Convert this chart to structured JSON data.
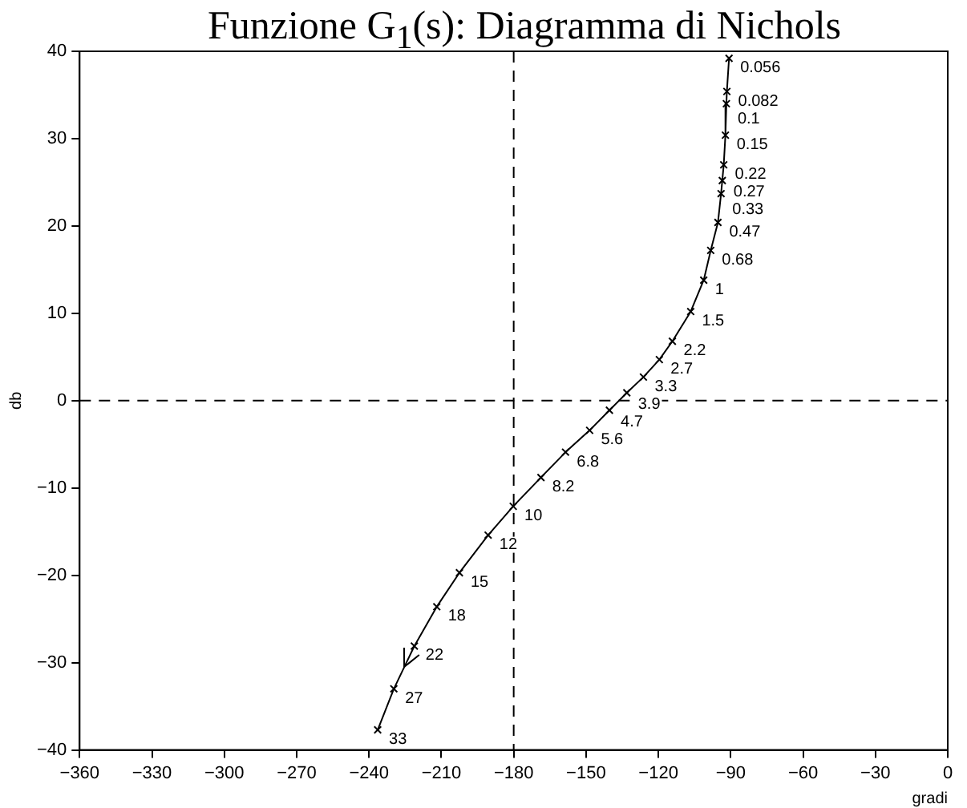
{
  "chart_data": {
    "type": "line",
    "title": "Funzione G$_{1}$(s): Diagramma di Nichols",
    "xlabel": "gradi",
    "ylabel": "db",
    "xlim": [
      -360,
      0
    ],
    "xticks": [
      -360,
      -330,
      -300,
      -270,
      -240,
      -210,
      -180,
      -150,
      -120,
      -90,
      -60,
      -30,
      0
    ],
    "ylim": [
      -40,
      40
    ],
    "yticks": [
      -40,
      -30,
      -20,
      -10,
      0,
      10,
      20,
      30,
      40
    ],
    "grid": false,
    "legend": false,
    "marker": "cross",
    "line_style": "solid",
    "series": [
      {
        "color": "#000000",
        "x": [
          -90.7,
          -91.6,
          -91.8,
          -92.2,
          -92.9,
          -93.5,
          -94.0,
          -95.3,
          -98.3,
          -101.2,
          -106.6,
          -114.2,
          -119.6,
          -126.2,
          -133.1,
          -140.3,
          -148.5,
          -158.5,
          -168.7,
          -180.2,
          -190.6,
          -202.5,
          -211.9,
          -221.2,
          -229.7,
          -236.4
        ],
        "values": [
          39.2,
          35.4,
          34.0,
          30.4,
          27.0,
          25.2,
          23.7,
          20.4,
          17.2,
          13.8,
          10.2,
          6.8,
          4.7,
          2.7,
          0.9,
          -1.1,
          -3.4,
          -5.9,
          -8.8,
          -12.1,
          -15.4,
          -19.7,
          -23.6,
          -28.1,
          -33.0,
          -37.7
        ]
      }
    ],
    "ref_lines": [
      {
        "axis": "x",
        "value": -180,
        "color": "#000000",
        "line_style": "dashed"
      },
      {
        "axis": "y",
        "value": 0,
        "color": "#000000",
        "line_style": "dashed"
      }
    ],
    "annotations": [
      {
        "text": "0.056",
        "x": -90.7,
        "y": 39.2
      },
      {
        "text": "0.082",
        "x": -91.6,
        "y": 35.4
      },
      {
        "text": "0.1",
        "x": -91.8,
        "y": 34.0
      },
      {
        "text": "0.15",
        "x": -92.2,
        "y": 30.4
      },
      {
        "text": "0.22",
        "x": -92.9,
        "y": 27.0
      },
      {
        "text": "0.27",
        "x": -93.5,
        "y": 25.2
      },
      {
        "text": "0.33",
        "x": -94.0,
        "y": 23.7
      },
      {
        "text": "0.47",
        "x": -95.3,
        "y": 20.4
      },
      {
        "text": "0.68",
        "x": -98.3,
        "y": 17.2
      },
      {
        "text": "1",
        "x": -101.2,
        "y": 13.8
      },
      {
        "text": "1.5",
        "x": -106.6,
        "y": 10.2
      },
      {
        "text": "2.2",
        "x": -114.2,
        "y": 6.8
      },
      {
        "text": "2.7",
        "x": -119.6,
        "y": 4.7
      },
      {
        "text": "3.3",
        "x": -126.2,
        "y": 2.7
      },
      {
        "text": "3.9",
        "x": -133.1,
        "y": 0.9
      },
      {
        "text": "4.7",
        "x": -140.3,
        "y": -1.1
      },
      {
        "text": "5.6",
        "x": -148.5,
        "y": -3.4
      },
      {
        "text": "6.8",
        "x": -158.5,
        "y": -5.9
      },
      {
        "text": "8.2",
        "x": -168.7,
        "y": -8.8
      },
      {
        "text": "10",
        "x": -180.2,
        "y": -12.1
      },
      {
        "text": "12",
        "x": -190.6,
        "y": -15.4
      },
      {
        "text": "15",
        "x": -202.5,
        "y": -19.7
      },
      {
        "text": "18",
        "x": -211.9,
        "y": -23.6
      },
      {
        "text": "22",
        "x": -221.2,
        "y": -28.1
      },
      {
        "text": "27",
        "x": -229.7,
        "y": -33.0
      },
      {
        "text": "33",
        "x": -236.4,
        "y": -37.7
      }
    ]
  }
}
